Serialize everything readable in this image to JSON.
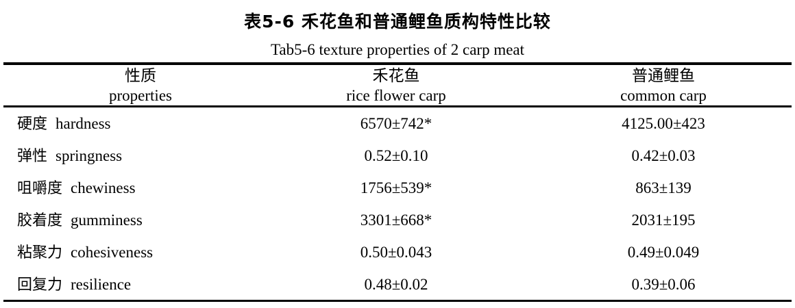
{
  "title_zh": "表5-6  禾花鱼和普通鲤鱼质构特性比较",
  "title_en": "Tab5-6 texture properties of 2 carp meat",
  "headers": [
    {
      "zh": "性质",
      "en": "properties"
    },
    {
      "zh": "禾花鱼",
      "en": "rice flower carp"
    },
    {
      "zh": "普通鲤鱼",
      "en": "common carp"
    }
  ],
  "rows": [
    {
      "zh": "硬度",
      "en": "hardness",
      "rice": "6570±742*",
      "common": "4125.00±423"
    },
    {
      "zh": "弹性",
      "en": "springness",
      "rice": "0.52±0.10",
      "common": "0.42±0.03"
    },
    {
      "zh": "咀嚼度",
      "en": "chewiness",
      "rice": "1756±539*",
      "common": "863±139"
    },
    {
      "zh": "胶着度",
      "en": "gumminess",
      "rice": "3301±668*",
      "common": "2031±195"
    },
    {
      "zh": "粘聚力",
      "en": "cohesiveness",
      "rice": "0.50±0.043",
      "common": "0.49±0.049"
    },
    {
      "zh": "回复力",
      "en": "resilience",
      "rice": "0.48±0.02",
      "common": "0.39±0.06"
    }
  ]
}
